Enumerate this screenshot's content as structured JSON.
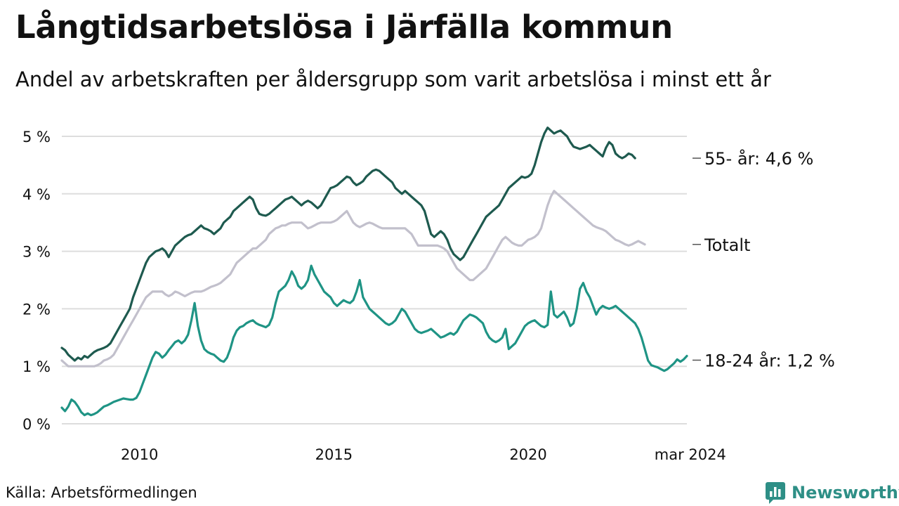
{
  "title": "Långtidsarbetslösa i Järfälla kommun",
  "subtitle": "Andel av arbetskraften per åldersgrupp som varit arbetslösa i minst ett år",
  "source": "Källa: Arbetsförmedlingen",
  "brand": "Newsworthy",
  "colors": {
    "older": "#1e5a4f",
    "total": "#c2c0cc",
    "young": "#1f9485",
    "grid": "#dddddd",
    "brand": "#2e8f86"
  },
  "chart_data": {
    "type": "line",
    "x_start": 2008.0,
    "x_step_years": 0.0833333,
    "ylim": [
      0,
      5.3
    ],
    "yticks": [
      0,
      1,
      2,
      3,
      4,
      5
    ],
    "ytick_labels": [
      "0 %",
      "1 %",
      "2 %",
      "3 %",
      "4 %",
      "5 %"
    ],
    "xticks": [
      2010,
      2015,
      2020,
      2024.17
    ],
    "xtick_labels": [
      "2010",
      "2015",
      "2020",
      "mar 2024"
    ],
    "series": [
      {
        "name": "55- år",
        "end_label": "55- år: 4,6 %",
        "color_key": "older",
        "values": [
          1.32,
          1.28,
          1.2,
          1.15,
          1.1,
          1.15,
          1.12,
          1.18,
          1.15,
          1.2,
          1.25,
          1.28,
          1.3,
          1.32,
          1.35,
          1.4,
          1.5,
          1.6,
          1.7,
          1.8,
          1.9,
          2.0,
          2.2,
          2.35,
          2.5,
          2.65,
          2.8,
          2.9,
          2.95,
          3.0,
          3.02,
          3.05,
          3.0,
          2.9,
          3.0,
          3.1,
          3.15,
          3.2,
          3.25,
          3.28,
          3.3,
          3.35,
          3.4,
          3.45,
          3.4,
          3.38,
          3.35,
          3.3,
          3.35,
          3.4,
          3.5,
          3.55,
          3.6,
          3.7,
          3.75,
          3.8,
          3.85,
          3.9,
          3.95,
          3.9,
          3.75,
          3.65,
          3.63,
          3.62,
          3.65,
          3.7,
          3.75,
          3.8,
          3.85,
          3.9,
          3.92,
          3.95,
          3.9,
          3.85,
          3.8,
          3.85,
          3.88,
          3.85,
          3.8,
          3.75,
          3.8,
          3.9,
          4.0,
          4.1,
          4.12,
          4.15,
          4.2,
          4.25,
          4.3,
          4.28,
          4.2,
          4.15,
          4.18,
          4.22,
          4.3,
          4.35,
          4.4,
          4.42,
          4.4,
          4.35,
          4.3,
          4.25,
          4.2,
          4.1,
          4.05,
          4.0,
          4.05,
          4.0,
          3.95,
          3.9,
          3.85,
          3.8,
          3.7,
          3.5,
          3.3,
          3.25,
          3.3,
          3.35,
          3.3,
          3.2,
          3.05,
          2.95,
          2.9,
          2.85,
          2.9,
          3.0,
          3.1,
          3.2,
          3.3,
          3.4,
          3.5,
          3.6,
          3.65,
          3.7,
          3.75,
          3.8,
          3.9,
          4.0,
          4.1,
          4.15,
          4.2,
          4.25,
          4.3,
          4.28,
          4.3,
          4.35,
          4.5,
          4.7,
          4.9,
          5.05,
          5.15,
          5.1,
          5.05,
          5.08,
          5.1,
          5.05,
          5.0,
          4.9,
          4.82,
          4.8,
          4.78,
          4.8,
          4.82,
          4.85,
          4.8,
          4.75,
          4.7,
          4.65,
          4.8,
          4.9,
          4.85,
          4.7,
          4.65,
          4.62,
          4.65,
          4.7,
          4.68,
          4.62
        ]
      },
      {
        "name": "Totalt",
        "end_label": "Totalt",
        "color_key": "total",
        "values": [
          1.1,
          1.05,
          1.0,
          1.0,
          1.0,
          1.0,
          1.0,
          1.0,
          1.0,
          1.0,
          1.0,
          1.02,
          1.05,
          1.1,
          1.12,
          1.15,
          1.2,
          1.3,
          1.4,
          1.5,
          1.6,
          1.7,
          1.8,
          1.9,
          2.0,
          2.1,
          2.2,
          2.25,
          2.3,
          2.3,
          2.3,
          2.3,
          2.25,
          2.22,
          2.25,
          2.3,
          2.28,
          2.25,
          2.22,
          2.25,
          2.28,
          2.3,
          2.3,
          2.3,
          2.32,
          2.35,
          2.38,
          2.4,
          2.42,
          2.45,
          2.5,
          2.55,
          2.6,
          2.7,
          2.8,
          2.85,
          2.9,
          2.95,
          3.0,
          3.05,
          3.05,
          3.1,
          3.15,
          3.2,
          3.3,
          3.35,
          3.4,
          3.42,
          3.45,
          3.45,
          3.48,
          3.5,
          3.5,
          3.5,
          3.5,
          3.45,
          3.4,
          3.42,
          3.45,
          3.48,
          3.5,
          3.5,
          3.5,
          3.5,
          3.52,
          3.55,
          3.6,
          3.65,
          3.7,
          3.6,
          3.5,
          3.45,
          3.42,
          3.45,
          3.48,
          3.5,
          3.48,
          3.45,
          3.42,
          3.4,
          3.4,
          3.4,
          3.4,
          3.4,
          3.4,
          3.4,
          3.4,
          3.35,
          3.3,
          3.2,
          3.1,
          3.1,
          3.1,
          3.1,
          3.1,
          3.1,
          3.1,
          3.08,
          3.05,
          3.0,
          2.9,
          2.8,
          2.7,
          2.65,
          2.6,
          2.55,
          2.5,
          2.5,
          2.55,
          2.6,
          2.65,
          2.7,
          2.8,
          2.9,
          3.0,
          3.1,
          3.2,
          3.25,
          3.2,
          3.15,
          3.12,
          3.1,
          3.1,
          3.15,
          3.2,
          3.22,
          3.25,
          3.3,
          3.4,
          3.6,
          3.8,
          3.95,
          4.05,
          4.0,
          3.95,
          3.9,
          3.85,
          3.8,
          3.75,
          3.7,
          3.65,
          3.6,
          3.55,
          3.5,
          3.45,
          3.42,
          3.4,
          3.38,
          3.35,
          3.3,
          3.25,
          3.2,
          3.18,
          3.15,
          3.12,
          3.1,
          3.12,
          3.15,
          3.18,
          3.15,
          3.12
        ]
      },
      {
        "name": "18-24 år",
        "end_label": "18-24 år: 1,2 %",
        "color_key": "young",
        "values": [
          0.28,
          0.22,
          0.3,
          0.42,
          0.38,
          0.3,
          0.2,
          0.15,
          0.18,
          0.15,
          0.17,
          0.2,
          0.25,
          0.3,
          0.32,
          0.35,
          0.38,
          0.4,
          0.42,
          0.44,
          0.43,
          0.42,
          0.42,
          0.45,
          0.55,
          0.7,
          0.85,
          1.0,
          1.15,
          1.25,
          1.22,
          1.15,
          1.2,
          1.28,
          1.35,
          1.42,
          1.45,
          1.4,
          1.45,
          1.55,
          1.8,
          2.1,
          1.7,
          1.45,
          1.3,
          1.25,
          1.22,
          1.2,
          1.15,
          1.1,
          1.08,
          1.15,
          1.3,
          1.5,
          1.62,
          1.68,
          1.7,
          1.75,
          1.78,
          1.8,
          1.75,
          1.72,
          1.7,
          1.68,
          1.72,
          1.85,
          2.1,
          2.3,
          2.35,
          2.4,
          2.5,
          2.65,
          2.55,
          2.4,
          2.35,
          2.4,
          2.5,
          2.75,
          2.6,
          2.5,
          2.4,
          2.3,
          2.25,
          2.2,
          2.1,
          2.05,
          2.1,
          2.15,
          2.12,
          2.1,
          2.15,
          2.3,
          2.5,
          2.2,
          2.1,
          2.0,
          1.95,
          1.9,
          1.85,
          1.8,
          1.75,
          1.72,
          1.75,
          1.8,
          1.9,
          2.0,
          1.95,
          1.85,
          1.75,
          1.65,
          1.6,
          1.58,
          1.6,
          1.62,
          1.65,
          1.6,
          1.55,
          1.5,
          1.52,
          1.55,
          1.58,
          1.55,
          1.6,
          1.7,
          1.8,
          1.85,
          1.9,
          1.88,
          1.85,
          1.8,
          1.75,
          1.6,
          1.5,
          1.45,
          1.42,
          1.45,
          1.5,
          1.65,
          1.3,
          1.35,
          1.4,
          1.5,
          1.6,
          1.7,
          1.75,
          1.78,
          1.8,
          1.75,
          1.7,
          1.68,
          1.72,
          2.3,
          1.9,
          1.85,
          1.9,
          1.95,
          1.85,
          1.7,
          1.75,
          2.0,
          2.35,
          2.45,
          2.3,
          2.2,
          2.05,
          1.9,
          2.0,
          2.05,
          2.02,
          2.0,
          2.02,
          2.05,
          2.0,
          1.95,
          1.9,
          1.85,
          1.8,
          1.75,
          1.65,
          1.5,
          1.3,
          1.1,
          1.02,
          1.0,
          0.98,
          0.95,
          0.92,
          0.95,
          1.0,
          1.05,
          1.12,
          1.08,
          1.12,
          1.18
        ]
      }
    ]
  }
}
